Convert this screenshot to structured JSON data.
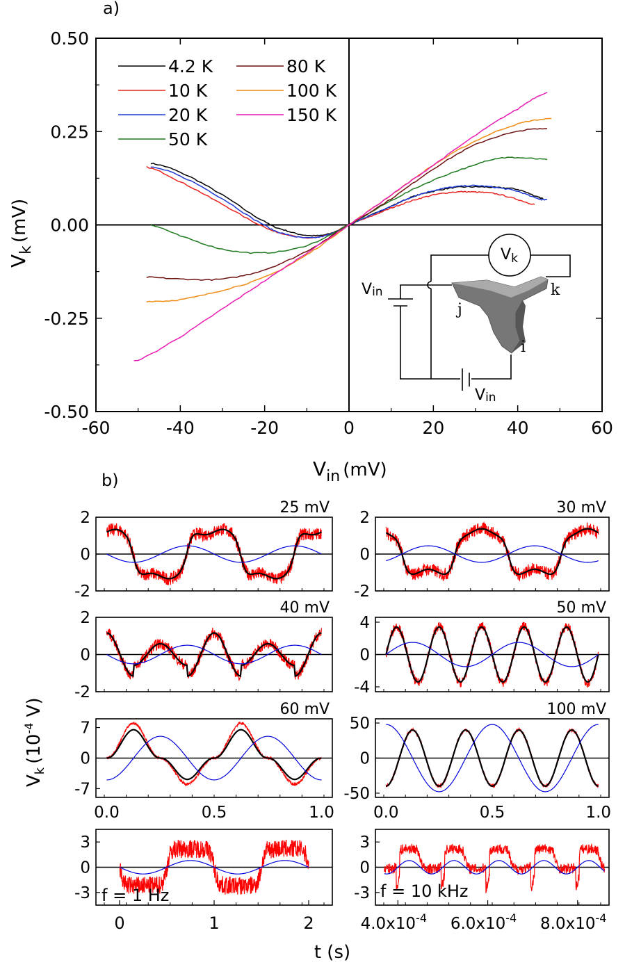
{
  "panel_a": {
    "letter": "a)",
    "xlabel_main": "V",
    "xlabel_sub": "in",
    "xlabel_unit": "(mV)",
    "ylabel_main": "V",
    "ylabel_sub": "k",
    "ylabel_unit": "(mV)",
    "inset": {
      "vk_main": "V",
      "vk_sub": "k",
      "vin_main": "V",
      "vin_sub": "in",
      "vin2_main": "V",
      "vin2_sub": "in",
      "label_k": "k",
      "label_j": "j",
      "label_i": "i"
    }
  },
  "panel_b": {
    "letter": "b)",
    "ylabel": "V",
    "ylabel_sub": "k",
    "ylabel_unit": "(10",
    "ylabel_exp": "-4",
    "ylabel_tail": " V)",
    "xlabel": "t (s)",
    "freq_left": "f = 1 Hz",
    "freq_right": "f = 10 kHz",
    "right_ticks": [
      {
        "base": "4.0x10",
        "exp": "-4"
      },
      {
        "base": "6.0x10",
        "exp": "-4"
      },
      {
        "base": "8.0x10",
        "exp": "-4"
      }
    ]
  },
  "chart_data": [
    {
      "type": "line",
      "panel": "a",
      "xlabel": "Vin (mV)",
      "ylabel": "Vk (mV)",
      "xlim": [
        -60,
        60
      ],
      "ylim": [
        -0.5,
        0.5
      ],
      "xticks": [
        -60,
        -40,
        -20,
        0,
        20,
        40,
        60
      ],
      "xtick_labels": [
        "-60",
        "-40",
        "-20",
        "0",
        "20",
        "40",
        "60"
      ],
      "yticks": [
        -0.5,
        -0.25,
        0,
        0.25,
        0.5
      ],
      "ytick_labels": [
        "-0.50",
        "-0.25",
        "0.00",
        "0.25",
        "0.50"
      ],
      "legend_position": "top-left",
      "series": [
        {
          "name": "4.2 K",
          "color": "#000000",
          "x": [
            -47,
            -40,
            -30,
            -20,
            -15,
            -10,
            -5,
            0,
            5,
            10,
            15,
            20,
            25,
            30,
            35,
            40,
            45,
            46
          ],
          "y": [
            0.165,
            0.14,
            0.08,
            0.01,
            -0.015,
            -0.028,
            -0.025,
            0.0,
            0.025,
            0.05,
            0.075,
            0.09,
            0.1,
            0.102,
            0.1,
            0.095,
            0.075,
            0.07
          ]
        },
        {
          "name": "10 K",
          "color": "#e8231f",
          "x": [
            -48,
            -40,
            -30,
            -20,
            -15,
            -10,
            -5,
            0,
            5,
            10,
            15,
            20,
            25,
            30,
            35,
            40,
            44
          ],
          "y": [
            0.155,
            0.115,
            0.055,
            -0.005,
            -0.025,
            -0.035,
            -0.027,
            0.0,
            0.022,
            0.045,
            0.065,
            0.08,
            0.088,
            0.088,
            0.083,
            0.068,
            0.055
          ]
        },
        {
          "name": "20 K",
          "color": "#1f3bd6",
          "x": [
            -47,
            -40,
            -30,
            -20,
            -15,
            -10,
            -5,
            0,
            5,
            10,
            15,
            20,
            25,
            30,
            35,
            40,
            45,
            47
          ],
          "y": [
            0.155,
            0.13,
            0.07,
            0.0,
            -0.025,
            -0.035,
            -0.027,
            0.0,
            0.025,
            0.05,
            0.075,
            0.092,
            0.102,
            0.105,
            0.1,
            0.09,
            0.07,
            0.068
          ]
        },
        {
          "name": "50 K",
          "color": "#1e7a1e",
          "x": [
            -47,
            -40,
            -30,
            -20,
            -10,
            0,
            10,
            20,
            30,
            35,
            40,
            47
          ],
          "y": [
            0.0,
            -0.03,
            -0.065,
            -0.075,
            -0.055,
            0.0,
            0.065,
            0.12,
            0.16,
            0.178,
            0.18,
            0.175
          ]
        },
        {
          "name": "80 K",
          "color": "#6e0f0f",
          "x": [
            -48,
            -40,
            -30,
            -20,
            -10,
            0,
            10,
            20,
            30,
            40,
            47
          ],
          "y": [
            -0.14,
            -0.145,
            -0.145,
            -0.12,
            -0.07,
            0.0,
            0.07,
            0.15,
            0.215,
            0.25,
            0.258
          ]
        },
        {
          "name": "100 K",
          "color": "#f08c14",
          "x": [
            -48,
            -40,
            -30,
            -20,
            -10,
            0,
            10,
            20,
            30,
            40,
            48
          ],
          "y": [
            -0.205,
            -0.2,
            -0.175,
            -0.14,
            -0.08,
            0.0,
            0.08,
            0.16,
            0.225,
            0.27,
            0.285
          ]
        },
        {
          "name": "150 K",
          "color": "#e81cb4",
          "x": [
            -51,
            -40,
            -30,
            -20,
            -10,
            0,
            10,
            20,
            30,
            40,
            47
          ],
          "y": [
            -0.365,
            -0.3,
            -0.225,
            -0.15,
            -0.075,
            0.0,
            0.08,
            0.16,
            0.24,
            0.31,
            0.355
          ]
        }
      ]
    },
    {
      "type": "line",
      "panel": "b",
      "label": "25 mV",
      "xlim": [
        -0.05,
        1.05
      ],
      "ylim": [
        -2,
        2
      ],
      "yticks": [
        -2,
        0,
        2
      ],
      "ytick_labels": [
        "-2",
        "0",
        "2"
      ],
      "series": [
        {
          "color": "#ff0000",
          "shape": "flat_top",
          "amp": 1.2,
          "period": 0.5,
          "phase": 0,
          "noise": 0.35
        },
        {
          "color": "#000000",
          "shape": "flat_top",
          "amp": 1.2,
          "period": 0.5,
          "phase": 0,
          "noise": 0
        },
        {
          "color": "#0000dd",
          "shape": "sine",
          "amp": 0.45,
          "period": 0.5,
          "phase": -0.5,
          "noise": 0
        }
      ]
    },
    {
      "type": "line",
      "panel": "b",
      "label": "30 mV",
      "xlim": [
        -0.05,
        1.05
      ],
      "ylim": [
        -2,
        2
      ],
      "yticks": [
        -2,
        0,
        2
      ],
      "ytick_labels": [
        "-2",
        "0",
        "2"
      ],
      "series": [
        {
          "color": "#ff0000",
          "shape": "dip_top",
          "amp": 1.1,
          "period": 0.5,
          "phase": 0.35,
          "noise": 0.35
        },
        {
          "color": "#000000",
          "shape": "dip_top",
          "amp": 1.1,
          "period": 0.5,
          "phase": 0.35,
          "noise": 0
        },
        {
          "color": "#0000dd",
          "shape": "sine",
          "amp": 0.45,
          "period": 0.5,
          "phase": -0.15,
          "noise": 0
        }
      ]
    },
    {
      "type": "line",
      "panel": "b",
      "label": "40 mV",
      "xlim": [
        -0.05,
        1.05
      ],
      "ylim": [
        -2,
        2
      ],
      "yticks": [
        -2,
        0,
        2
      ],
      "ytick_labels": [
        "-2",
        "0",
        "2"
      ],
      "series": [
        {
          "color": "#ff0000",
          "shape": "double",
          "amp": 1.45,
          "period": 0.5,
          "phase": 0.25,
          "noise": 0.3
        },
        {
          "color": "#000000",
          "shape": "double",
          "amp": 1.45,
          "period": 0.5,
          "phase": 0.25,
          "noise": 0
        },
        {
          "color": "#0000dd",
          "shape": "sine",
          "amp": 0.5,
          "period": 0.5,
          "phase": -0.5,
          "noise": 0
        }
      ]
    },
    {
      "type": "line",
      "panel": "b",
      "label": "50 mV",
      "xlim": [
        -0.05,
        1.05
      ],
      "ylim": [
        -4.6,
        4.6
      ],
      "yticks": [
        -4,
        0,
        4
      ],
      "ytick_labels": [
        "-4",
        "0",
        "4"
      ],
      "series": [
        {
          "color": "#ff0000",
          "shape": "sine",
          "amp": 3.5,
          "period": 0.2,
          "phase": 0,
          "noise": 0.55
        },
        {
          "color": "#000000",
          "shape": "sine",
          "amp": 3.4,
          "period": 0.2,
          "phase": 0,
          "noise": 0
        },
        {
          "color": "#0000dd",
          "shape": "sine",
          "amp": 1.5,
          "period": 0.5,
          "phase": 0,
          "noise": 0
        }
      ]
    },
    {
      "type": "line",
      "panel": "b",
      "label": "60 mV",
      "xlim": [
        -0.05,
        1.05
      ],
      "ylim": [
        -9,
        9
      ],
      "yticks": [
        -7,
        0,
        7
      ],
      "ytick_labels": [
        "-7",
        "0",
        "7"
      ],
      "series": [
        {
          "color": "#ff0000",
          "shape": "peaky",
          "amp": 8.0,
          "period": 0.5,
          "phase": 0,
          "noise": 0.3
        },
        {
          "color": "#000000",
          "shape": "peaky",
          "amp": 6.5,
          "period": 0.5,
          "phase": 0,
          "noise": 0
        },
        {
          "color": "#0000dd",
          "shape": "cosine",
          "amp": 5.0,
          "period": 0.5,
          "phase": 0.5,
          "noise": 0
        }
      ]
    },
    {
      "type": "line",
      "panel": "b",
      "label": "100 mV",
      "xlim": [
        -0.05,
        1.05
      ],
      "ylim": [
        -56,
        56
      ],
      "yticks": [
        -50,
        0,
        50
      ],
      "ytick_labels": [
        "-50",
        "0",
        "50"
      ],
      "series": [
        {
          "color": "#ff0000",
          "shape": "sine_neg_cos",
          "amp": 40,
          "period": 0.25,
          "phase": 0,
          "noise": 2.5
        },
        {
          "color": "#000000",
          "shape": "sine_neg_cos",
          "amp": 40,
          "period": 0.25,
          "phase": 0,
          "noise": 0
        },
        {
          "color": "#0000dd",
          "shape": "cosine",
          "amp": 48,
          "period": 0.5,
          "phase": 0,
          "noise": 0
        }
      ]
    },
    {
      "type": "line",
      "panel": "b",
      "label": "",
      "xlim": [
        -0.25,
        2.25
      ],
      "ylim": [
        -4.5,
        4.5
      ],
      "yticks": [
        -3,
        0,
        3
      ],
      "ytick_labels": [
        "-3",
        "0",
        "3"
      ],
      "xticks": [
        0,
        1,
        2
      ],
      "xtick_labels": [
        "0",
        "1",
        "2"
      ],
      "series": [
        {
          "color": "#ff0000",
          "shape": "square_noise",
          "amp": 2.2,
          "period": 1.0,
          "phase": 0.5,
          "noise": 1.1
        },
        {
          "color": "#0000dd",
          "shape": "sine",
          "amp": 0.8,
          "period": 1.0,
          "phase": -0.5,
          "noise": 0
        }
      ]
    },
    {
      "type": "line",
      "panel": "b",
      "label": "",
      "xlim": [
        0.00035,
        0.00087
      ],
      "ylim": [
        -4.5,
        4.5
      ],
      "yticks": [
        -3,
        0,
        3
      ],
      "ytick_labels": [
        "-3",
        "0",
        "3"
      ],
      "xticks": [
        0.0004,
        0.0006,
        0.0008
      ],
      "series": [
        {
          "color": "#ff0000",
          "shape": "spiky",
          "amp": 2.0,
          "period": 0.0001,
          "phase": 0,
          "noise": 0.6
        },
        {
          "color": "#0000dd",
          "shape": "sine",
          "amp": 0.8,
          "period": 0.0001,
          "phase": 0,
          "noise": 0
        }
      ]
    }
  ]
}
